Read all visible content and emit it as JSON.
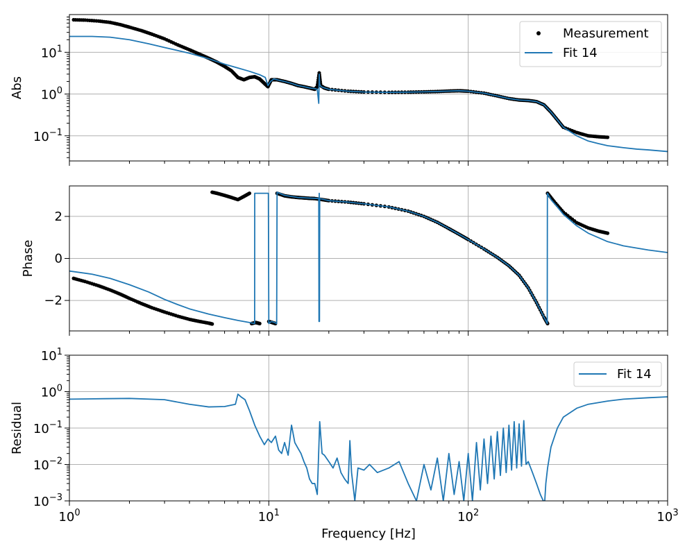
{
  "colors": {
    "fit": "#1f77b4",
    "measurement": "#000000",
    "grid": "#b0b0b0"
  },
  "chart_data": [
    {
      "type": "line",
      "panel": "magnitude",
      "ylabel": "Abs",
      "xlabel": "",
      "xscale": "log",
      "yscale": "log",
      "xlim": [
        1,
        1000
      ],
      "ylim": [
        0.025,
        80
      ],
      "yticks": [
        {
          "value": 0.1,
          "base": "10",
          "exp": "−1"
        },
        {
          "value": 1,
          "base": "10",
          "exp": "0"
        },
        {
          "value": 10,
          "base": "10",
          "exp": "1"
        }
      ],
      "grid": true,
      "legend": {
        "position": "top-right",
        "entries": [
          "Measurement",
          "Fit 14"
        ]
      },
      "series": [
        {
          "name": "Measurement",
          "style": "points",
          "x": [
            1.05,
            1.2,
            1.4,
            1.6,
            1.8,
            2.0,
            2.3,
            2.6,
            3.0,
            3.5,
            4.0,
            4.5,
            5.0,
            5.5,
            6.0,
            6.5,
            7.0,
            7.5,
            8.0,
            8.5,
            9.0,
            9.5,
            9.9,
            10.3,
            11.0,
            12.0,
            13.0,
            14.0,
            15.0,
            16.0,
            17.0,
            17.5,
            17.9,
            18.2,
            19.0,
            20.0,
            25.0,
            30.0,
            40.0,
            50.0,
            60.0,
            70.0,
            80.0,
            90.0,
            100.0,
            120.0,
            140.0,
            160.0,
            180.0,
            200.0,
            220.0,
            240.0,
            260.0,
            280.0,
            300.0,
            350.0,
            400.0,
            450.0,
            500.0
          ],
          "y": [
            60,
            59,
            56,
            52,
            46,
            40,
            33,
            27,
            21,
            15,
            11.5,
            9,
            7.2,
            5.8,
            4.6,
            3.6,
            2.5,
            2.2,
            2.5,
            2.6,
            2.3,
            1.8,
            1.5,
            2.2,
            2.2,
            2.0,
            1.8,
            1.6,
            1.5,
            1.4,
            1.3,
            1.5,
            3.2,
            1.6,
            1.4,
            1.3,
            1.17,
            1.12,
            1.1,
            1.11,
            1.13,
            1.15,
            1.18,
            1.2,
            1.17,
            1.05,
            0.9,
            0.78,
            0.72,
            0.7,
            0.66,
            0.55,
            0.37,
            0.24,
            0.16,
            0.12,
            0.1,
            0.095,
            0.092
          ]
        },
        {
          "name": "Fit 14",
          "style": "line",
          "x": [
            1.0,
            1.3,
            1.6,
            2.0,
            2.5,
            3.0,
            3.5,
            4.0,
            5.0,
            6.0,
            7.0,
            8.0,
            9.0,
            9.6,
            9.9,
            10.2,
            10.6,
            11.0,
            12.0,
            13.0,
            14.0,
            15.0,
            16.0,
            17.0,
            17.5,
            17.8,
            17.9,
            18.0,
            18.3,
            19.0,
            20.0,
            25.0,
            30.0,
            40.0,
            50.0,
            60.0,
            70.0,
            80.0,
            90.0,
            100.0,
            120.0,
            140.0,
            160.0,
            180.0,
            200.0,
            220.0,
            240.0,
            260.0,
            280.0,
            300.0,
            350.0,
            400.0,
            450.0,
            500.0,
            600.0,
            700.0,
            800.0,
            1000.0
          ],
          "y": [
            24,
            24,
            23,
            20,
            16,
            13,
            11,
            9.5,
            7,
            5.2,
            4.2,
            3.5,
            2.9,
            2.5,
            1.6,
            2.0,
            2.3,
            2.2,
            2.0,
            1.8,
            1.6,
            1.5,
            1.4,
            1.35,
            1.3,
            0.6,
            3.0,
            1.7,
            1.5,
            1.4,
            1.3,
            1.17,
            1.12,
            1.1,
            1.11,
            1.13,
            1.15,
            1.18,
            1.2,
            1.17,
            1.05,
            0.9,
            0.78,
            0.72,
            0.7,
            0.66,
            0.55,
            0.37,
            0.24,
            0.16,
            0.1,
            0.075,
            0.065,
            0.058,
            0.052,
            0.048,
            0.046,
            0.042
          ]
        }
      ]
    },
    {
      "type": "line",
      "panel": "phase",
      "ylabel": "Phase",
      "xlabel": "",
      "xscale": "log",
      "yscale": "linear",
      "xlim": [
        1,
        1000
      ],
      "ylim": [
        -3.45,
        3.45
      ],
      "yticks": [
        {
          "value": -2,
          "label": "−2"
        },
        {
          "value": 0,
          "label": "0"
        },
        {
          "value": 2,
          "label": "2"
        }
      ],
      "grid": true,
      "series": [
        {
          "name": "Measurement",
          "style": "points",
          "segments": [
            {
              "x": [
                1.05,
                1.2,
                1.4,
                1.6,
                1.8,
                2.0,
                2.3,
                2.6,
                3.0,
                3.5,
                4.0,
                4.5,
                5.0,
                5.2
              ],
              "y": [
                -0.95,
                -1.1,
                -1.3,
                -1.5,
                -1.7,
                -1.9,
                -2.15,
                -2.35,
                -2.55,
                -2.75,
                -2.9,
                -3.0,
                -3.08,
                -3.12
              ]
            },
            {
              "x": [
                5.2,
                5.5,
                6.0,
                6.5,
                7.0,
                7.5,
                8.0
              ],
              "y": [
                3.15,
                3.1,
                3.0,
                2.9,
                2.8,
                2.95,
                3.1
              ]
            },
            {
              "x": [
                8.2,
                8.6,
                9.0
              ],
              "y": [
                -3.1,
                -3.05,
                -3.1
              ]
            },
            {
              "x": [
                10.0,
                10.4,
                10.8
              ],
              "y": [
                -3.0,
                -3.05,
                -3.1
              ]
            },
            {
              "x": [
                11.0,
                12.0,
                13.0,
                14.0,
                15.0,
                16.0,
                17.0,
                18.5,
                20.0,
                25.0,
                30.0,
                40.0,
                50.0,
                60.0,
                70.0,
                80.0,
                90.0,
                100.0,
                120.0,
                140.0,
                160.0,
                180.0,
                200.0,
                220.0,
                240.0,
                250.0
              ],
              "y": [
                3.1,
                2.98,
                2.93,
                2.9,
                2.88,
                2.86,
                2.85,
                2.8,
                2.75,
                2.68,
                2.6,
                2.45,
                2.25,
                2.0,
                1.72,
                1.42,
                1.15,
                0.9,
                0.45,
                0.05,
                -0.35,
                -0.8,
                -1.4,
                -2.1,
                -2.8,
                -3.1
              ]
            },
            {
              "x": [
                250.0,
                270.0,
                300.0,
                350.0,
                400.0,
                450.0,
                500.0
              ],
              "y": [
                3.1,
                2.7,
                2.2,
                1.7,
                1.45,
                1.3,
                1.2
              ]
            }
          ]
        },
        {
          "name": "Fit 14",
          "style": "line",
          "x": [
            1.0,
            1.3,
            1.6,
            2.0,
            2.5,
            3.0,
            3.5,
            4.0,
            5.0,
            6.0,
            7.0,
            8.0,
            8.49,
            8.5,
            9.0,
            9.5,
            9.95,
            10.0,
            10.3,
            10.7,
            10.95,
            11.0,
            12.0,
            14.0,
            16.0,
            17.8,
            17.85,
            17.9,
            17.95,
            18.0,
            20.0,
            25.0,
            30.0,
            40.0,
            50.0,
            60.0,
            70.0,
            80.0,
            90.0,
            100.0,
            120.0,
            140.0,
            160.0,
            180.0,
            200.0,
            220.0,
            240.0,
            249.0,
            249.5,
            260.0,
            280.0,
            300.0,
            350.0,
            400.0,
            500.0,
            600.0,
            800.0,
            1000.0
          ],
          "y": [
            -0.6,
            -0.75,
            -0.95,
            -1.25,
            -1.6,
            -1.95,
            -2.2,
            -2.4,
            -2.65,
            -2.82,
            -2.95,
            -3.05,
            -3.1,
            3.1,
            3.1,
            3.1,
            3.1,
            -3.1,
            -3.0,
            -3.05,
            -3.1,
            3.15,
            3.0,
            2.9,
            2.87,
            2.85,
            -3.0,
            3.1,
            -3.0,
            2.85,
            2.75,
            2.68,
            2.6,
            2.45,
            2.25,
            2.0,
            1.72,
            1.42,
            1.15,
            0.9,
            0.45,
            0.05,
            -0.35,
            -0.8,
            -1.4,
            -2.1,
            -2.8,
            -3.1,
            3.1,
            2.8,
            2.45,
            2.1,
            1.55,
            1.2,
            0.8,
            0.6,
            0.4,
            0.28
          ]
        }
      ]
    },
    {
      "type": "line",
      "panel": "residual",
      "ylabel": "Residual",
      "xlabel": "Frequency [Hz]",
      "xscale": "log",
      "yscale": "log",
      "xlim": [
        1,
        1000
      ],
      "ylim": [
        0.001,
        10
      ],
      "xticks": [
        {
          "value": 1,
          "base": "10",
          "exp": "0"
        },
        {
          "value": 10,
          "base": "10",
          "exp": "1"
        },
        {
          "value": 100,
          "base": "10",
          "exp": "2"
        },
        {
          "value": 1000,
          "base": "10",
          "exp": "3"
        }
      ],
      "yticks": [
        {
          "value": 0.001,
          "base": "10",
          "exp": "−3"
        },
        {
          "value": 0.01,
          "base": "10",
          "exp": "−2"
        },
        {
          "value": 0.1,
          "base": "10",
          "exp": "−1"
        },
        {
          "value": 1,
          "base": "10",
          "exp": "0"
        },
        {
          "value": 10,
          "base": "10",
          "exp": "1"
        }
      ],
      "grid": true,
      "legend": {
        "position": "top-right",
        "entries": [
          "Fit 14"
        ]
      },
      "series": [
        {
          "name": "Fit 14",
          "style": "line",
          "x": [
            1.0,
            1.5,
            2.0,
            3.0,
            4.0,
            5.0,
            6.0,
            6.8,
            7.0,
            7.3,
            7.6,
            8.0,
            8.5,
            9.0,
            9.5,
            9.9,
            10.3,
            10.8,
            11.2,
            11.6,
            12.0,
            12.5,
            13.0,
            13.5,
            14.0,
            14.5,
            15.0,
            15.5,
            16.0,
            16.5,
            17.0,
            17.5,
            18.0,
            18.5,
            19.0,
            20.0,
            21.0,
            22.0,
            23.0,
            24.0,
            25.0,
            25.5,
            26.0,
            27.0,
            28.0,
            30.0,
            32.0,
            35.0,
            40.0,
            45.0,
            50.0,
            55.0,
            60.0,
            65.0,
            70.0,
            75.0,
            80.0,
            85.0,
            90.0,
            95.0,
            100.0,
            105.0,
            110.0,
            115.0,
            120.0,
            125.0,
            130.0,
            135.0,
            140.0,
            145.0,
            150.0,
            155.0,
            160.0,
            165.0,
            170.0,
            175.0,
            180.0,
            185.0,
            190.0,
            195.0,
            200.0,
            210.0,
            220.0,
            230.0,
            238.0,
            242.0,
            245.0,
            250.0,
            260.0,
            280.0,
            300.0,
            350.0,
            400.0,
            500.0,
            600.0,
            800.0,
            1000.0
          ],
          "y": [
            0.62,
            0.64,
            0.65,
            0.6,
            0.45,
            0.38,
            0.39,
            0.45,
            0.85,
            0.7,
            0.6,
            0.3,
            0.12,
            0.06,
            0.035,
            0.05,
            0.04,
            0.06,
            0.025,
            0.02,
            0.04,
            0.018,
            0.12,
            0.04,
            0.028,
            0.02,
            0.012,
            0.008,
            0.004,
            0.003,
            0.003,
            0.0015,
            0.15,
            0.02,
            0.018,
            0.012,
            0.008,
            0.015,
            0.006,
            0.004,
            0.003,
            0.045,
            0.006,
            0.001,
            0.008,
            0.007,
            0.01,
            0.006,
            0.008,
            0.012,
            0.003,
            0.001,
            0.01,
            0.002,
            0.015,
            0.001,
            0.02,
            0.0015,
            0.012,
            0.001,
            0.02,
            0.001,
            0.04,
            0.002,
            0.05,
            0.003,
            0.06,
            0.004,
            0.08,
            0.005,
            0.1,
            0.006,
            0.12,
            0.007,
            0.15,
            0.008,
            0.13,
            0.009,
            0.16,
            0.01,
            0.012,
            0.006,
            0.003,
            0.0015,
            0.001,
            0.001,
            0.003,
            0.008,
            0.03,
            0.1,
            0.2,
            0.35,
            0.45,
            0.55,
            0.62,
            0.68,
            0.72
          ]
        }
      ]
    }
  ]
}
